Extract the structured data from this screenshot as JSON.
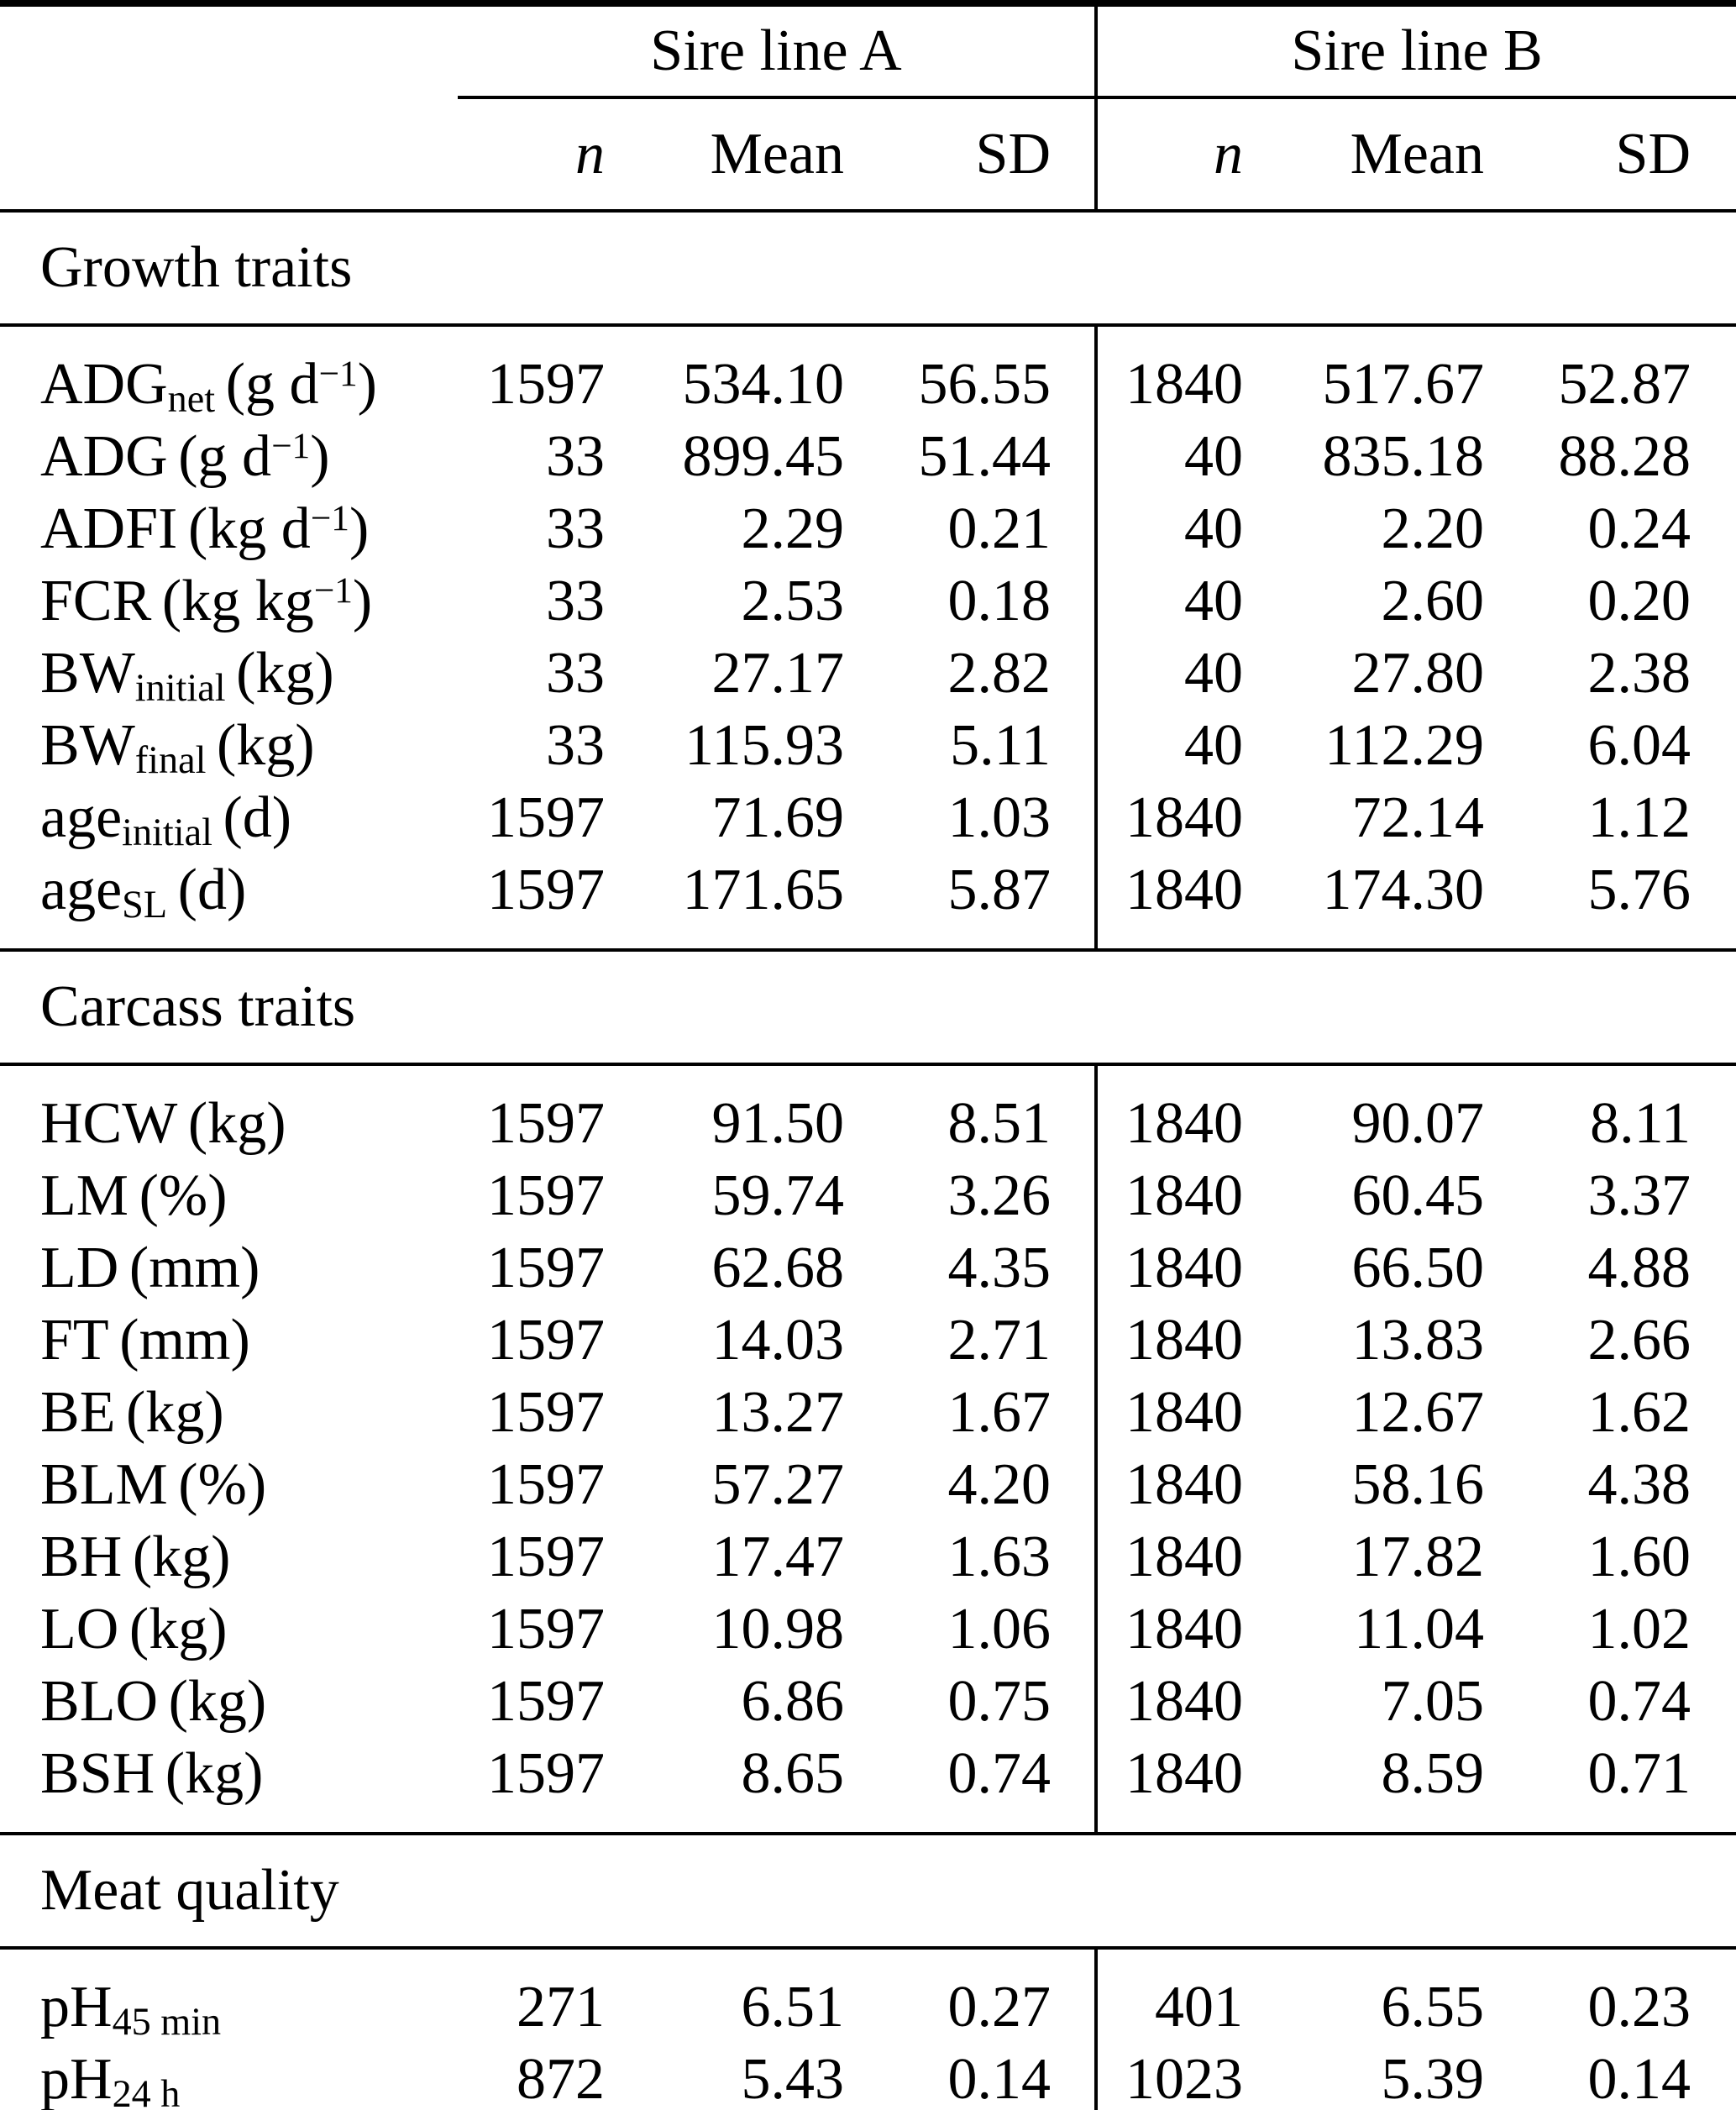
{
  "table": {
    "col_groups": {
      "a": "Sire line A",
      "b": "Sire line B"
    },
    "columns": {
      "n": "n",
      "mean": "Mean",
      "sd": "SD"
    },
    "sections": [
      {
        "title": "Growth traits",
        "rows": [
          {
            "name": "ADG",
            "sub": "net",
            "unit": "(g d",
            "unit_sup": "−1",
            "unit_close": ")",
            "a_n": "1597",
            "a_mean": "534.10",
            "a_sd": "56.55",
            "b_n": "1840",
            "b_mean": "517.67",
            "b_sd": "52.87"
          },
          {
            "name": "ADG",
            "sub": "",
            "unit": "(g d",
            "unit_sup": "−1",
            "unit_close": ")",
            "a_n": "33",
            "a_mean": "899.45",
            "a_sd": "51.44",
            "b_n": "40",
            "b_mean": "835.18",
            "b_sd": "88.28"
          },
          {
            "name": "ADFI",
            "sub": "",
            "unit": "(kg d",
            "unit_sup": "−1",
            "unit_close": ")",
            "a_n": "33",
            "a_mean": "2.29",
            "a_sd": "0.21",
            "b_n": "40",
            "b_mean": "2.20",
            "b_sd": "0.24"
          },
          {
            "name": "FCR",
            "sub": "",
            "unit": "(kg kg",
            "unit_sup": "−1",
            "unit_close": ")",
            "a_n": "33",
            "a_mean": "2.53",
            "a_sd": "0.18",
            "b_n": "40",
            "b_mean": "2.60",
            "b_sd": "0.20"
          },
          {
            "name": "BW",
            "sub": "initial",
            "unit": "(kg)",
            "unit_sup": "",
            "unit_close": "",
            "a_n": "33",
            "a_mean": "27.17",
            "a_sd": "2.82",
            "b_n": "40",
            "b_mean": "27.80",
            "b_sd": "2.38"
          },
          {
            "name": "BW",
            "sub": "final",
            "unit": "(kg)",
            "unit_sup": "",
            "unit_close": "",
            "a_n": "33",
            "a_mean": "115.93",
            "a_sd": "5.11",
            "b_n": "40",
            "b_mean": "112.29",
            "b_sd": "6.04"
          },
          {
            "name": "age",
            "sub": "initial",
            "unit": "(d)",
            "unit_sup": "",
            "unit_close": "",
            "a_n": "1597",
            "a_mean": "71.69",
            "a_sd": "1.03",
            "b_n": "1840",
            "b_mean": "72.14",
            "b_sd": "1.12"
          },
          {
            "name": "age",
            "sub": "SL",
            "unit": "(d)",
            "unit_sup": "",
            "unit_close": "",
            "a_n": "1597",
            "a_mean": "171.65",
            "a_sd": "5.87",
            "b_n": "1840",
            "b_mean": "174.30",
            "b_sd": "5.76"
          }
        ]
      },
      {
        "title": "Carcass traits",
        "rows": [
          {
            "name": "HCW",
            "sub": "",
            "unit": "(kg)",
            "unit_sup": "",
            "unit_close": "",
            "a_n": "1597",
            "a_mean": "91.50",
            "a_sd": "8.51",
            "b_n": "1840",
            "b_mean": "90.07",
            "b_sd": "8.11"
          },
          {
            "name": "LM",
            "sub": "",
            "unit": "(%)",
            "unit_sup": "",
            "unit_close": "",
            "a_n": "1597",
            "a_mean": "59.74",
            "a_sd": "3.26",
            "b_n": "1840",
            "b_mean": "60.45",
            "b_sd": "3.37"
          },
          {
            "name": "LD",
            "sub": "",
            "unit": "(mm)",
            "unit_sup": "",
            "unit_close": "",
            "a_n": "1597",
            "a_mean": "62.68",
            "a_sd": "4.35",
            "b_n": "1840",
            "b_mean": "66.50",
            "b_sd": "4.88"
          },
          {
            "name": "FT",
            "sub": "",
            "unit": "(mm)",
            "unit_sup": "",
            "unit_close": "",
            "a_n": "1597",
            "a_mean": "14.03",
            "a_sd": "2.71",
            "b_n": "1840",
            "b_mean": "13.83",
            "b_sd": "2.66"
          },
          {
            "name": "BE",
            "sub": "",
            "unit": "(kg)",
            "unit_sup": "",
            "unit_close": "",
            "a_n": "1597",
            "a_mean": "13.27",
            "a_sd": "1.67",
            "b_n": "1840",
            "b_mean": "12.67",
            "b_sd": "1.62"
          },
          {
            "name": "BLM",
            "sub": "",
            "unit": "(%)",
            "unit_sup": "",
            "unit_close": "",
            "a_n": "1597",
            "a_mean": "57.27",
            "a_sd": "4.20",
            "b_n": "1840",
            "b_mean": "58.16",
            "b_sd": "4.38"
          },
          {
            "name": "BH",
            "sub": "",
            "unit": "(kg)",
            "unit_sup": "",
            "unit_close": "",
            "a_n": "1597",
            "a_mean": "17.47",
            "a_sd": "1.63",
            "b_n": "1840",
            "b_mean": "17.82",
            "b_sd": "1.60"
          },
          {
            "name": "LO",
            "sub": "",
            "unit": "(kg)",
            "unit_sup": "",
            "unit_close": "",
            "a_n": "1597",
            "a_mean": "10.98",
            "a_sd": "1.06",
            "b_n": "1840",
            "b_mean": "11.04",
            "b_sd": "1.02"
          },
          {
            "name": "BLO",
            "sub": "",
            "unit": "(kg)",
            "unit_sup": "",
            "unit_close": "",
            "a_n": "1597",
            "a_mean": "6.86",
            "a_sd": "0.75",
            "b_n": "1840",
            "b_mean": "7.05",
            "b_sd": "0.74"
          },
          {
            "name": "BSH",
            "sub": "",
            "unit": "(kg)",
            "unit_sup": "",
            "unit_close": "",
            "a_n": "1597",
            "a_mean": "8.65",
            "a_sd": "0.74",
            "b_n": "1840",
            "b_mean": "8.59",
            "b_sd": "0.71"
          }
        ]
      },
      {
        "title": "Meat quality",
        "rows": [
          {
            "name": "pH",
            "sub": "45 min",
            "unit": "",
            "unit_sup": "",
            "unit_close": "",
            "a_n": "271",
            "a_mean": "6.51",
            "a_sd": "0.27",
            "b_n": "401",
            "b_mean": "6.55",
            "b_sd": "0.23"
          },
          {
            "name": "pH",
            "sub": "24 h",
            "unit": "",
            "unit_sup": "",
            "unit_close": "",
            "a_n": "872",
            "a_mean": "5.43",
            "a_sd": "0.14",
            "b_n": "1023",
            "b_mean": "5.39",
            "b_sd": "0.14"
          }
        ]
      }
    ]
  }
}
